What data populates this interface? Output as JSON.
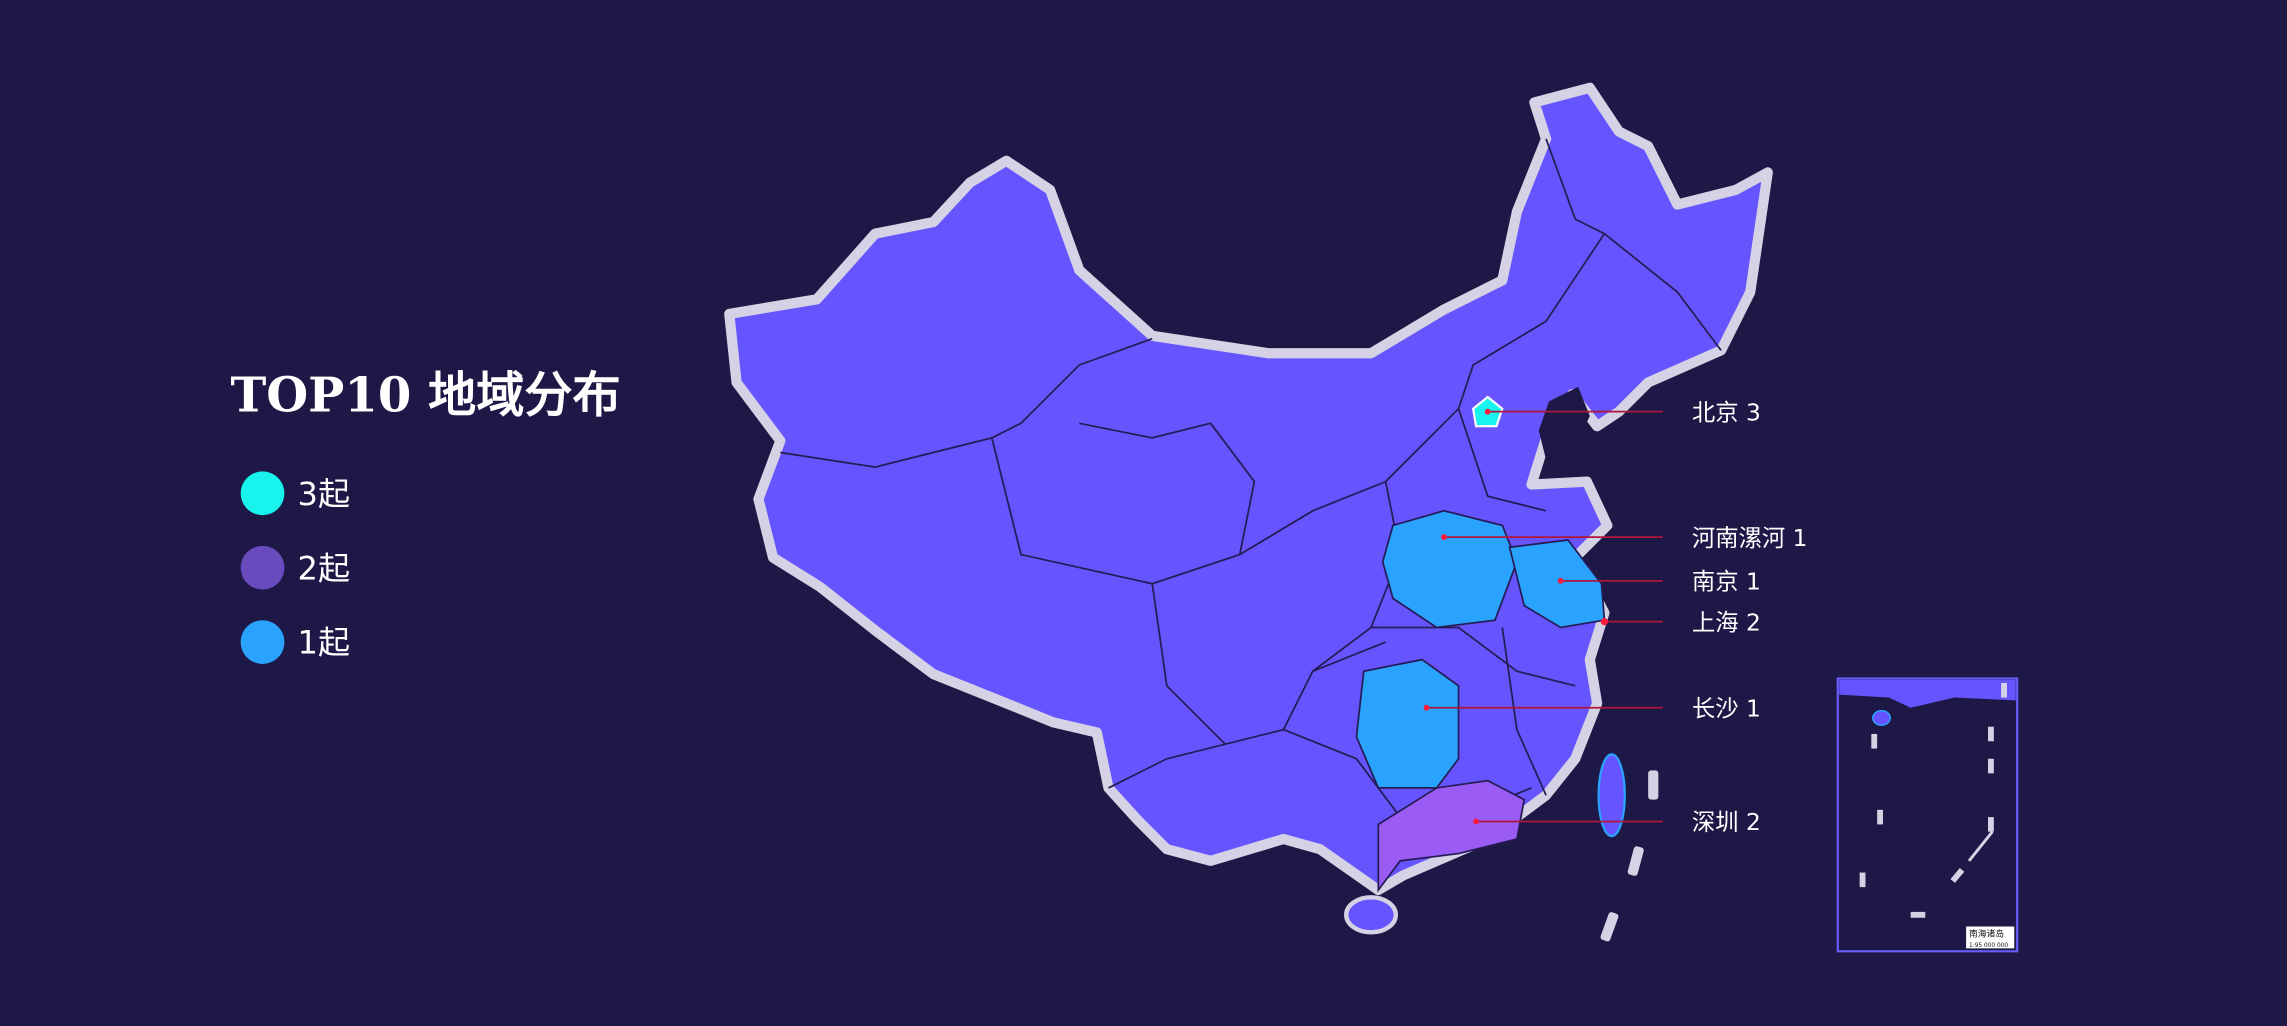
{
  "title": "TOP10 地域分布",
  "legend": [
    {
      "label": "3起",
      "color": "#19f3ee"
    },
    {
      "label": "2起",
      "color": "#6a4bbd"
    },
    {
      "label": "1起",
      "color": "#2aa3ff"
    }
  ],
  "colors": {
    "background": "#1e1846",
    "map_fill": "#6655ff",
    "province_border": "#261c55",
    "outline": "#d4d2e4",
    "leader_line": "#b0163c",
    "level_3": "#19f3ee",
    "level_2": "#9b5cf6",
    "level_1": "#2aa3ff"
  },
  "regions": [
    {
      "name": "北京",
      "count": 3,
      "label": "北京 3"
    },
    {
      "name": "河南漯河",
      "count": 1,
      "label": "河南漯河 1"
    },
    {
      "name": "南京",
      "count": 1,
      "label": "南京 1"
    },
    {
      "name": "上海",
      "count": 2,
      "label": "上海 2"
    },
    {
      "name": "长沙",
      "count": 1,
      "label": "长沙 1"
    },
    {
      "name": "深圳",
      "count": 2,
      "label": "深圳 2"
    }
  ],
  "inset": {
    "title": "南海诸岛",
    "scale": "1:95 000 000"
  }
}
